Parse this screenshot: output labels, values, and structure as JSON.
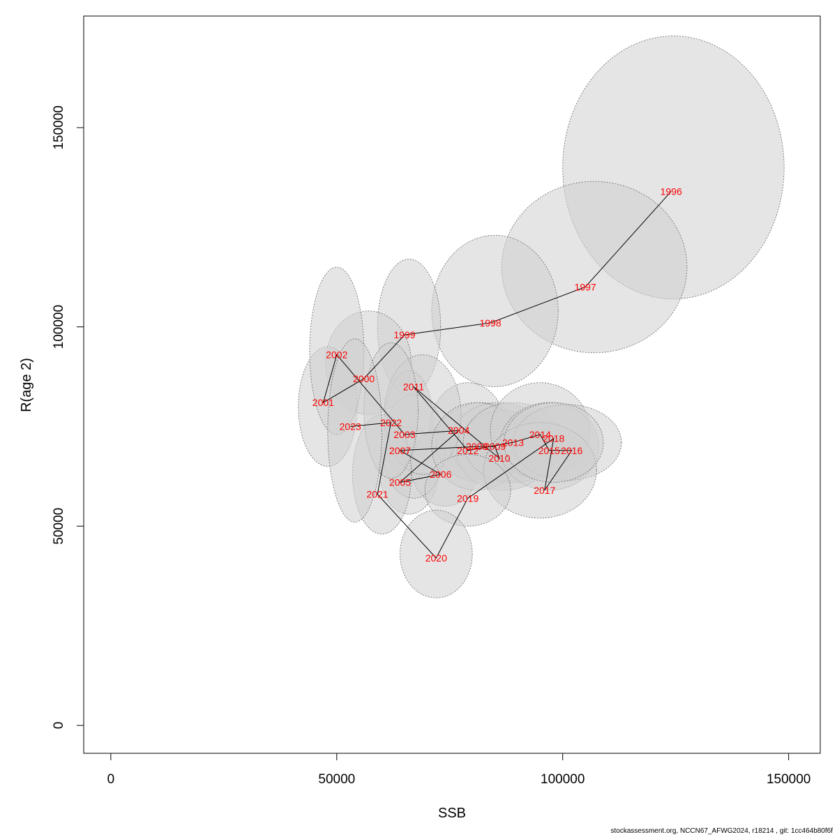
{
  "chart_data": {
    "type": "scatter",
    "xlabel": "SSB",
    "ylabel": "R(age 2)",
    "xlim": [
      -6000,
      157000
    ],
    "ylim": [
      -7000,
      178000
    ],
    "x_ticks": [
      0,
      50000,
      100000,
      150000
    ],
    "y_ticks": [
      0,
      50000,
      100000,
      150000
    ],
    "x_tick_labels": [
      "0",
      "50000",
      "100000",
      "150000"
    ],
    "y_tick_labels": [
      "0",
      "50000",
      "100000",
      "150000"
    ],
    "grid": false,
    "label_color": "#ff0000",
    "line_color": "#000000",
    "ellipse_fill": "#d0d0d0",
    "points": [
      {
        "year": "1996",
        "ssb": 124000,
        "r": 134000,
        "ell": {
          "cx": 124500,
          "cy": 140000,
          "rx": 24500,
          "ry": 33000
        }
      },
      {
        "year": "1997",
        "ssb": 105000,
        "r": 110000,
        "ell": {
          "cx": 107000,
          "cy": 115000,
          "rx": 20500,
          "ry": 21500
        }
      },
      {
        "year": "1998",
        "ssb": 84000,
        "r": 101000,
        "ell": {
          "cx": 85000,
          "cy": 104000,
          "rx": 14000,
          "ry": 19000
        }
      },
      {
        "year": "1999",
        "ssb": 65000,
        "r": 98000,
        "ell": {
          "cx": 66000,
          "cy": 100000,
          "rx": 7000,
          "ry": 17000
        }
      },
      {
        "year": "2000",
        "ssb": 56000,
        "r": 87000,
        "ell": {
          "cx": 57000,
          "cy": 91000,
          "rx": 9500,
          "ry": 13000
        }
      },
      {
        "year": "2001",
        "ssb": 47000,
        "r": 81000,
        "ell": {
          "cx": 48000,
          "cy": 80000,
          "rx": 6500,
          "ry": 15000
        }
      },
      {
        "year": "2002",
        "ssb": 50000,
        "r": 93000,
        "ell": {
          "cx": 50000,
          "cy": 94000,
          "rx": 6000,
          "ry": 21000
        }
      },
      {
        "year": "2003",
        "ssb": 65000,
        "r": 73000,
        "ell": {
          "cx": 66000,
          "cy": 75000,
          "rx": 5500,
          "ry": 14000
        }
      },
      {
        "year": "2004",
        "ssb": 77000,
        "r": 74000,
        "ell": {
          "cx": 79000,
          "cy": 74000,
          "rx": 8500,
          "ry": 12000
        }
      },
      {
        "year": "2005",
        "ssb": 64000,
        "r": 61000,
        "ell": {
          "cx": 66000,
          "cy": 64000,
          "rx": 6500,
          "ry": 11000
        }
      },
      {
        "year": "2006",
        "ssb": 73000,
        "r": 63000,
        "ell": {
          "cx": 74000,
          "cy": 65000,
          "rx": 7500,
          "ry": 10000
        }
      },
      {
        "year": "2007",
        "ssb": 64000,
        "r": 69000,
        "ell": {
          "cx": 67000,
          "cy": 70000,
          "rx": 7000,
          "ry": 13000
        }
      },
      {
        "year": "2008",
        "ssb": 81000,
        "r": 70000,
        "ell": {
          "cx": 82000,
          "cy": 71000,
          "rx": 10000,
          "ry": 10000
        }
      },
      {
        "year": "2009",
        "ssb": 85000,
        "r": 70000,
        "ell": {
          "cx": 86000,
          "cy": 71000,
          "rx": 11000,
          "ry": 10000
        }
      },
      {
        "year": "2010",
        "ssb": 86000,
        "r": 67000,
        "ell": {
          "cx": 87000,
          "cy": 69000,
          "rx": 10500,
          "ry": 10000
        }
      },
      {
        "year": "2011",
        "ssb": 67000,
        "r": 85000,
        "ell": {
          "cx": 69000,
          "cy": 78000,
          "rx": 8500,
          "ry": 15000
        }
      },
      {
        "year": "2012",
        "ssb": 79000,
        "r": 69000,
        "ell": {
          "cx": 81000,
          "cy": 70000,
          "rx": 10000,
          "ry": 11000
        }
      },
      {
        "year": "2013",
        "ssb": 89000,
        "r": 71000,
        "ell": {
          "cx": 89000,
          "cy": 71000,
          "rx": 11000,
          "ry": 10000
        }
      },
      {
        "year": "2014",
        "ssb": 95000,
        "r": 73000,
        "ell": {
          "cx": 95000,
          "cy": 74000,
          "rx": 11000,
          "ry": 12000
        }
      },
      {
        "year": "2015",
        "ssb": 97000,
        "r": 69000,
        "ell": {
          "cx": 97000,
          "cy": 70000,
          "rx": 11000,
          "ry": 11000
        }
      },
      {
        "year": "2016",
        "ssb": 102000,
        "r": 69000,
        "ell": {
          "cx": 101000,
          "cy": 71000,
          "rx": 12000,
          "ry": 9500
        }
      },
      {
        "year": "2017",
        "ssb": 96000,
        "r": 59000,
        "ell": {
          "cx": 95000,
          "cy": 64000,
          "rx": 12500,
          "ry": 12000
        }
      },
      {
        "year": "2018",
        "ssb": 98000,
        "r": 72000,
        "ell": {
          "cx": 98000,
          "cy": 71000,
          "rx": 11000,
          "ry": 10000
        }
      },
      {
        "year": "2019",
        "ssb": 79000,
        "r": 57000,
        "ell": {
          "cx": 79000,
          "cy": 59000,
          "rx": 9500,
          "ry": 9000
        }
      },
      {
        "year": "2020",
        "ssb": 72000,
        "r": 42000,
        "ell": {
          "cx": 72000,
          "cy": 43000,
          "rx": 8000,
          "ry": 11000
        }
      },
      {
        "year": "2021",
        "ssb": 59000,
        "r": 58000,
        "ell": {
          "cx": 60000,
          "cy": 63000,
          "rx": 6500,
          "ry": 15000
        }
      },
      {
        "year": "2022",
        "ssb": 62000,
        "r": 76000,
        "ell": {
          "cx": 62000,
          "cy": 79000,
          "rx": 6000,
          "ry": 17000
        }
      },
      {
        "year": "2023",
        "ssb": 53000,
        "r": 75000,
        "ell": {
          "cx": 54000,
          "cy": 74000,
          "rx": 6000,
          "ry": 23000
        }
      }
    ]
  },
  "footer": "stockassessment.org, NCCN67_AFWG2024, r18214 , git: 1cc464b80f6f"
}
